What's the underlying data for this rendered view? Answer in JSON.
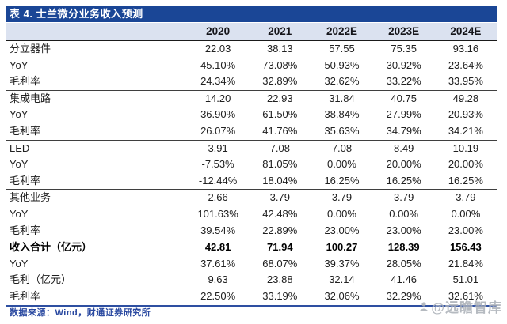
{
  "title": "表 4. 士兰微分业务收入预测",
  "table": {
    "columns": [
      "2020",
      "2021",
      "2022E",
      "2023E",
      "2024E"
    ],
    "rows": [
      {
        "label": "分立器件",
        "values": [
          "22.03",
          "38.13",
          "57.55",
          "75.35",
          "93.16"
        ],
        "section_start": false,
        "bold": false
      },
      {
        "label": "YoY",
        "values": [
          "45.10%",
          "73.08%",
          "50.93%",
          "30.92%",
          "23.64%"
        ],
        "section_start": false,
        "bold": false
      },
      {
        "label": "毛利率",
        "values": [
          "24.34%",
          "32.89%",
          "32.62%",
          "33.22%",
          "33.95%"
        ],
        "section_start": false,
        "bold": false
      },
      {
        "label": "集成电路",
        "values": [
          "14.20",
          "22.93",
          "31.84",
          "40.75",
          "49.28"
        ],
        "section_start": true,
        "bold": false
      },
      {
        "label": "YoY",
        "values": [
          "36.90%",
          "61.50%",
          "38.84%",
          "27.99%",
          "20.93%"
        ],
        "section_start": false,
        "bold": false
      },
      {
        "label": "毛利率",
        "values": [
          "26.07%",
          "41.76%",
          "35.63%",
          "34.79%",
          "34.21%"
        ],
        "section_start": false,
        "bold": false
      },
      {
        "label": "LED",
        "values": [
          "3.91",
          "7.08",
          "7.08",
          "8.49",
          "10.19"
        ],
        "section_start": true,
        "bold": false
      },
      {
        "label": "YoY",
        "values": [
          "-7.53%",
          "81.05%",
          "0.00%",
          "20.00%",
          "20.00%"
        ],
        "section_start": false,
        "bold": false
      },
      {
        "label": "毛利率",
        "values": [
          "-12.44%",
          "18.04%",
          "16.25%",
          "16.25%",
          "16.25%"
        ],
        "section_start": false,
        "bold": false
      },
      {
        "label": "其他业务",
        "values": [
          "2.66",
          "3.79",
          "3.79",
          "3.79",
          "3.79"
        ],
        "section_start": true,
        "bold": false
      },
      {
        "label": "YoY",
        "values": [
          "101.63%",
          "42.48%",
          "0.00%",
          "0.00%",
          "0.00%"
        ],
        "section_start": false,
        "bold": false
      },
      {
        "label": "毛利率",
        "values": [
          "39.54%",
          "22.89%",
          "23.00%",
          "23.00%",
          "23.00%"
        ],
        "section_start": false,
        "bold": false
      },
      {
        "label": "收入合计（亿元）",
        "values": [
          "42.81",
          "71.94",
          "100.27",
          "128.39",
          "156.43"
        ],
        "section_start": true,
        "bold": true
      },
      {
        "label": "YoY",
        "values": [
          "37.61%",
          "68.07%",
          "39.37%",
          "28.05%",
          "21.84%"
        ],
        "section_start": false,
        "bold": false
      },
      {
        "label": "毛利（亿元）",
        "values": [
          "9.63",
          "23.88",
          "32.14",
          "41.46",
          "51.01"
        ],
        "section_start": false,
        "bold": false
      },
      {
        "label": "毛利率",
        "values": [
          "22.50%",
          "33.19%",
          "32.06%",
          "32.29%",
          "32.61%"
        ],
        "section_start": false,
        "bold": false
      }
    ]
  },
  "footer": {
    "source": "数据来源：Wind，财通证券研究所"
  },
  "watermark": {
    "icon": "person-icon",
    "text": "@远瞻智库"
  },
  "colors": {
    "title_bar": "#1a4696",
    "header_bg": "#dbe2f0",
    "bottom_rule": "#2e4fa1",
    "source_text": "#2948a0",
    "watermark_gray": "#a9aeb6"
  }
}
